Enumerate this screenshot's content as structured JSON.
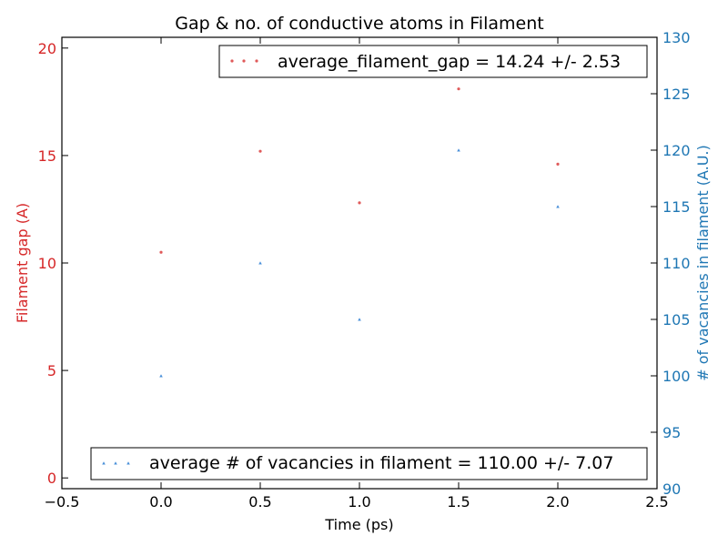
{
  "chart_data": {
    "type": "scatter",
    "title": "Gap & no. of conductive atoms in Filament",
    "xlabel": "Time (ps)",
    "xlim": [
      -0.5,
      2.5
    ],
    "xticks": [
      -0.5,
      0.0,
      0.5,
      1.0,
      1.5,
      2.0,
      2.5
    ],
    "xtick_labels": [
      "−0.5",
      "0.0",
      "0.5",
      "1.0",
      "1.5",
      "2.0",
      "2.5"
    ],
    "grid": false,
    "left_axis": {
      "label": "Filament gap (A)",
      "color": "#d62728",
      "ylim": [
        -0.5,
        20.5
      ],
      "ticks": [
        0,
        5,
        10,
        15,
        20
      ],
      "tick_labels": [
        "0",
        "5",
        "10",
        "15",
        "20"
      ]
    },
    "right_axis": {
      "label": "# of vacancies in filament (A.U.)",
      "color": "#1f77b4",
      "ylim": [
        90,
        130
      ],
      "ticks": [
        90,
        95,
        100,
        105,
        110,
        115,
        120,
        125,
        130
      ],
      "tick_labels": [
        "90",
        "95",
        "100",
        "105",
        "110",
        "115",
        "120",
        "125",
        "130"
      ]
    },
    "series": [
      {
        "axis": "left",
        "marker": "circle",
        "color": "#e05a5a",
        "x": [
          0.0,
          0.5,
          1.0,
          1.5,
          2.0
        ],
        "y": [
          10.5,
          15.2,
          12.8,
          18.1,
          14.6
        ]
      },
      {
        "axis": "right",
        "marker": "triangle",
        "color": "#4a90d9",
        "x": [
          0.0,
          0.5,
          1.0,
          1.5,
          2.0
        ],
        "y": [
          100,
          110,
          105,
          120,
          115
        ]
      }
    ],
    "legends": [
      {
        "text": "average_filament_gap = 14.24 +/- 2.53",
        "placement": "top-right",
        "marker": "circle",
        "color": "#e05a5a"
      },
      {
        "text": "average # of vacancies in filament = 110.00 +/- 7.07",
        "placement": "bottom-right",
        "marker": "triangle",
        "color": "#4a90d9"
      }
    ]
  }
}
